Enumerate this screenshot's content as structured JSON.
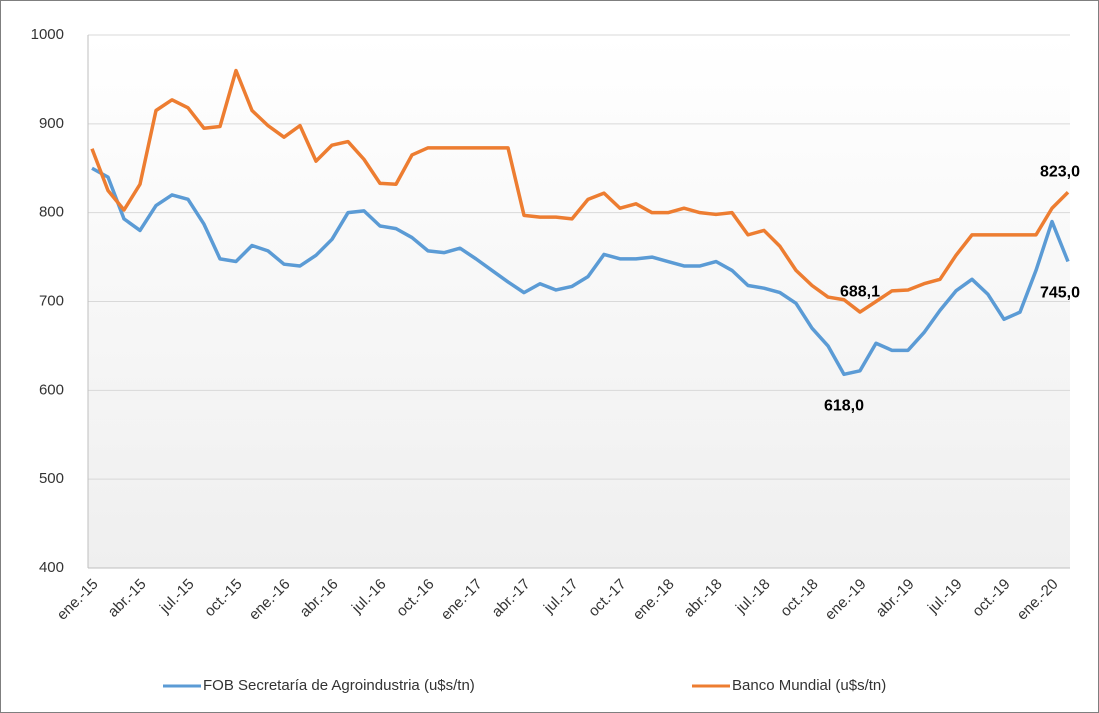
{
  "chart_data": {
    "type": "line",
    "categories": [
      "ene.-15",
      null,
      null,
      "abr.-15",
      null,
      null,
      "jul.-15",
      null,
      null,
      "oct.-15",
      null,
      null,
      "ene.-16",
      null,
      null,
      "abr.-16",
      null,
      null,
      "jul.-16",
      null,
      null,
      "oct.-16",
      null,
      null,
      "ene.-17",
      null,
      null,
      "abr.-17",
      null,
      null,
      "jul.-17",
      null,
      null,
      "oct.-17",
      null,
      null,
      "ene.-18",
      null,
      null,
      "abr.-18",
      null,
      null,
      "jul.-18",
      null,
      null,
      "oct.-18",
      null,
      null,
      "ene.-19",
      null,
      null,
      "abr.-19",
      null,
      null,
      "jul.-19",
      null,
      null,
      "oct.-19",
      null,
      null,
      "ene.-20",
      null
    ],
    "series": [
      {
        "name": "FOB Secretaría de Agroindustria (u$s/tn)",
        "color": "#5b9bd5",
        "values": [
          850,
          840,
          793,
          780,
          808,
          820,
          815,
          787,
          748,
          745,
          763,
          757,
          742,
          740,
          752,
          770,
          800,
          802,
          785,
          782,
          772,
          757,
          755,
          760,
          748,
          735,
          722,
          710,
          720,
          713,
          717,
          728,
          753,
          748,
          748,
          750,
          745,
          740,
          740,
          745,
          735,
          718,
          715,
          710,
          698,
          670,
          650,
          618,
          622,
          653,
          645,
          645,
          665,
          690,
          712,
          725,
          708,
          680,
          688,
          735,
          790,
          745
        ],
        "value_labels": [
          null,
          null,
          null,
          null,
          null,
          null,
          null,
          null,
          null,
          null,
          null,
          null,
          null,
          null,
          null,
          null,
          null,
          null,
          null,
          null,
          null,
          null,
          null,
          null,
          null,
          null,
          null,
          null,
          null,
          null,
          null,
          null,
          null,
          null,
          null,
          null,
          null,
          null,
          null,
          null,
          null,
          null,
          null,
          null,
          null,
          null,
          null,
          "618,0",
          null,
          null,
          null,
          null,
          null,
          null,
          null,
          null,
          null,
          null,
          null,
          null,
          null,
          "745,0"
        ]
      },
      {
        "name": "Banco Mundial (u$s/tn)",
        "color": "#ed7d31",
        "values": [
          872,
          825,
          803,
          832,
          915,
          927,
          918,
          895,
          897,
          960,
          915,
          898,
          885,
          898,
          858,
          876,
          880,
          860,
          833,
          832,
          865,
          873,
          873,
          873,
          873,
          873,
          873,
          797,
          795,
          795,
          793,
          815,
          822,
          805,
          810,
          800,
          800,
          805,
          800,
          798,
          800,
          775,
          780,
          762,
          735,
          718,
          705,
          702,
          688.1,
          700,
          712,
          713,
          720,
          725,
          752,
          775,
          775,
          775,
          775,
          775,
          805,
          823
        ],
        "value_labels": [
          null,
          null,
          null,
          null,
          null,
          null,
          null,
          null,
          null,
          null,
          null,
          null,
          null,
          null,
          null,
          null,
          null,
          null,
          null,
          null,
          null,
          null,
          null,
          null,
          null,
          null,
          null,
          null,
          null,
          null,
          null,
          null,
          null,
          null,
          null,
          null,
          null,
          null,
          null,
          null,
          null,
          null,
          null,
          null,
          null,
          null,
          null,
          null,
          "688,1",
          null,
          null,
          null,
          null,
          null,
          null,
          null,
          null,
          null,
          null,
          null,
          null,
          "823,0"
        ]
      }
    ],
    "ylim": [
      400,
      1000
    ],
    "yticks": [
      400,
      500,
      600,
      700,
      800,
      900,
      1000
    ],
    "grid": true,
    "legend": "bottom"
  }
}
